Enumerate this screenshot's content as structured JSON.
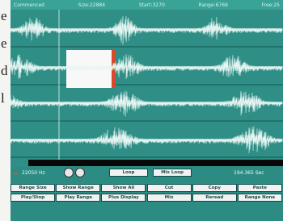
{
  "background_text": [
    "e",
    "e",
    "d",
    "l"
  ],
  "status_bar": [
    "Commenced",
    "Size:22884",
    "Start:3270",
    "Range:6769",
    "Free:25"
  ],
  "controls": {
    "rate": "22050 Hz",
    "loop": "Loop",
    "mix_loop": "Mix Loop",
    "time": "194.365 Sec"
  },
  "buttons": [
    [
      "Range Size",
      "Show Range",
      "Show All",
      "Cut",
      "Copy",
      "Paste"
    ],
    [
      "Play/Stop",
      "Play Range",
      "Plus Display",
      "Mix",
      "Reread",
      "Range None"
    ]
  ]
}
